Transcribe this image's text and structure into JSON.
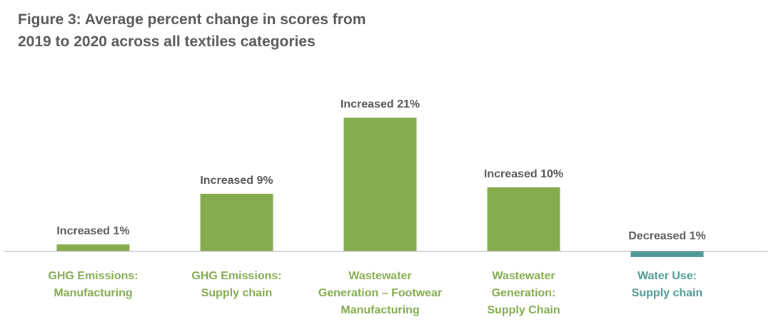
{
  "colors": {
    "title": "#58595b",
    "increase": "#84ac4f",
    "decrease": "#4f9a96",
    "label": "#58595b",
    "axis": "#a7a9ac"
  },
  "chart_data": {
    "type": "bar",
    "title_lines": [
      "Figure 3: Average percent change in scores from",
      "2019 to 2020 across all textiles categories"
    ],
    "xlabel": "",
    "ylabel": "",
    "unit": "%",
    "grid": false,
    "categories": [
      [
        "GHG Emissions:",
        "Manufacturing"
      ],
      [
        "GHG Emissions:",
        "Supply chain"
      ],
      [
        "Wastewater",
        "Generation – Footwear",
        "Manufacturing"
      ],
      [
        "Wastewater",
        "Generation:",
        "Supply Chain"
      ],
      [
        "Water Use:",
        "Supply chain"
      ]
    ],
    "values": [
      1,
      9,
      21,
      10,
      -1
    ],
    "data_labels": [
      "Increased 1%",
      "Increased 9%",
      "Increased 21%",
      "Increased 10%",
      "Decreased 1%"
    ]
  }
}
